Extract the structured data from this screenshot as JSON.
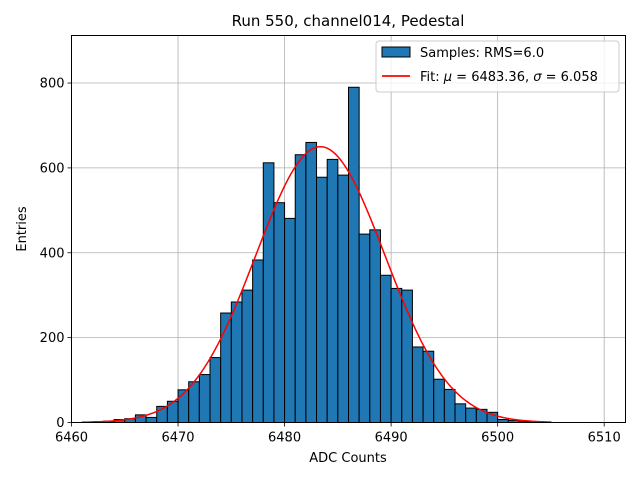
{
  "chart_data": {
    "type": "bar",
    "title": "Run 550, channel014, Pedestal",
    "xlabel": "ADC Counts",
    "ylabel": "Entries",
    "xlim": [
      6460,
      6512
    ],
    "ylim": [
      0,
      912
    ],
    "xticks": [
      "6460",
      "6470",
      "6480",
      "6490",
      "6500",
      "6510"
    ],
    "yticks": [
      "0",
      "200",
      "400",
      "600",
      "800"
    ],
    "grid": true,
    "legend_position": "top-right",
    "histogram": {
      "name": "Samples: RMS=6.0",
      "color": "#1f77b4",
      "edge_color": "#000000",
      "bin_edges": [
        6461,
        6462,
        6463,
        6464,
        6465,
        6466,
        6467,
        6468,
        6469,
        6470,
        6471,
        6472,
        6473,
        6474,
        6475,
        6476,
        6477,
        6478,
        6479,
        6480,
        6481,
        6482,
        6483,
        6484,
        6485,
        6486,
        6487,
        6488,
        6489,
        6490,
        6491,
        6492,
        6493,
        6494,
        6495,
        6496,
        6497,
        6498,
        6499,
        6500,
        6501,
        6502,
        6503,
        6504,
        6505
      ],
      "counts": [
        1,
        2,
        3,
        7,
        9,
        18,
        12,
        38,
        50,
        77,
        96,
        113,
        153,
        258,
        284,
        312,
        383,
        612,
        518,
        481,
        631,
        660,
        578,
        620,
        583,
        790,
        444,
        454,
        347,
        316,
        312,
        178,
        168,
        102,
        78,
        44,
        34,
        31,
        24,
        7,
        5,
        2,
        1,
        1
      ]
    },
    "fit": {
      "name": "Fit: $\\mu$ = 6483.36, $\\sigma$ = 6.058",
      "mu_text": "μ",
      "sigma_text": "σ",
      "label_prefix": "Fit: ",
      "label_mid": " = 6483.36, ",
      "label_suffix": " = 6.058",
      "color": "#ff0000",
      "mu": 6483.36,
      "sigma": 6.058,
      "amplitude": 650,
      "x_range": [
        6461,
        6505
      ]
    }
  }
}
